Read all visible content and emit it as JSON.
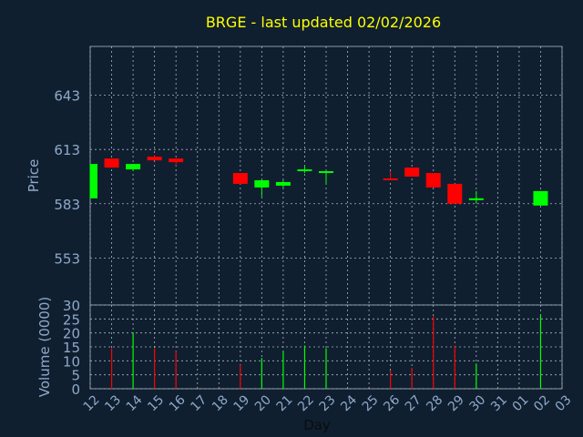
{
  "chart_data": {
    "type": "candlestick",
    "title": "BRGE - last updated 02/02/2026",
    "xlabel": "Day",
    "ylabel": "Price",
    "volume_label": "Volume (0000)",
    "x_ticks": [
      "12",
      "13",
      "14",
      "15",
      "16",
      "17",
      "18",
      "19",
      "20",
      "21",
      "22",
      "23",
      "24",
      "25",
      "26",
      "27",
      "28",
      "29",
      "30",
      "31",
      "01",
      "02",
      "03"
    ],
    "price_ticks": [
      553,
      583,
      613,
      643
    ],
    "price_range": [
      527,
      670
    ],
    "volume_ticks": [
      0,
      5,
      10,
      15,
      20,
      25,
      30
    ],
    "volume_range": [
      0,
      30
    ],
    "grid": true,
    "colors": {
      "background": "#0f1f30",
      "axis": "#8898aa",
      "grid": "#aab4c0",
      "title": "#ffff00",
      "label": "#8fa9c8",
      "up": "#00ff00",
      "down": "#ff0000",
      "price_wick": "#cfcfcf"
    },
    "candles": [
      {
        "day": "12",
        "open": 586,
        "high": 605,
        "low": 586,
        "close": 605
      },
      {
        "day": "13",
        "open": 608,
        "high": 608,
        "low": 603,
        "close": 603
      },
      {
        "day": "14",
        "open": 602,
        "high": 605,
        "low": 601,
        "close": 605
      },
      {
        "day": "15",
        "open": 609,
        "high": 610,
        "low": 607,
        "close": 607
      },
      {
        "day": "16",
        "open": 608,
        "high": 608,
        "low": 604,
        "close": 606
      },
      {
        "day": "19",
        "open": 600,
        "high": 600,
        "low": 594,
        "close": 594
      },
      {
        "day": "20",
        "open": 592,
        "high": 596,
        "low": 587,
        "close": 596
      },
      {
        "day": "21",
        "open": 593,
        "high": 596,
        "low": 592,
        "close": 595
      },
      {
        "day": "22",
        "open": 601,
        "high": 604,
        "low": 600,
        "close": 602
      },
      {
        "day": "23",
        "open": 600,
        "high": 601,
        "low": 594,
        "close": 601
      },
      {
        "day": "26",
        "open": 597,
        "high": 601,
        "low": 596,
        "close": 596
      },
      {
        "day": "27",
        "open": 603,
        "high": 603,
        "low": 598,
        "close": 598
      },
      {
        "day": "28",
        "open": 600,
        "high": 600,
        "low": 592,
        "close": 592
      },
      {
        "day": "29",
        "open": 594,
        "high": 594,
        "low": 583,
        "close": 583
      },
      {
        "day": "30",
        "open": 585,
        "high": 590,
        "low": 583,
        "close": 586
      },
      {
        "day": "02",
        "open": 582,
        "high": 590,
        "low": 582,
        "close": 590
      }
    ],
    "volume": [
      {
        "day": "13",
        "value": 14.5,
        "color": "down"
      },
      {
        "day": "14",
        "value": 20,
        "color": "up"
      },
      {
        "day": "15",
        "value": 14.5,
        "color": "down"
      },
      {
        "day": "16",
        "value": 13.5,
        "color": "down"
      },
      {
        "day": "19",
        "value": 8.5,
        "color": "down"
      },
      {
        "day": "20",
        "value": 11,
        "color": "up"
      },
      {
        "day": "21",
        "value": 13.5,
        "color": "up"
      },
      {
        "day": "22",
        "value": 15.5,
        "color": "up"
      },
      {
        "day": "23",
        "value": 14.5,
        "color": "up"
      },
      {
        "day": "26",
        "value": 6.5,
        "color": "down"
      },
      {
        "day": "27",
        "value": 7.5,
        "color": "down"
      },
      {
        "day": "28",
        "value": 26,
        "color": "down"
      },
      {
        "day": "29",
        "value": 15.5,
        "color": "down"
      },
      {
        "day": "30",
        "value": 9,
        "color": "up"
      },
      {
        "day": "02",
        "value": 26.5,
        "color": "up"
      }
    ]
  }
}
